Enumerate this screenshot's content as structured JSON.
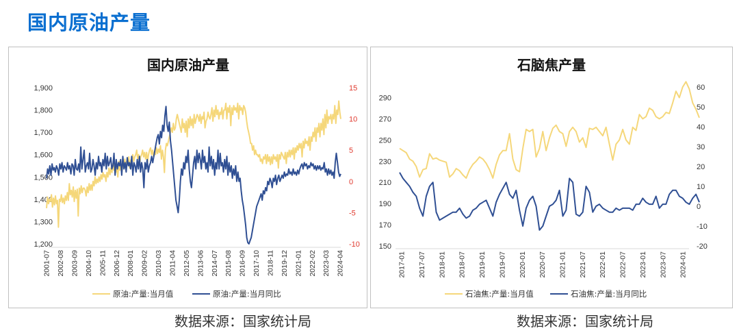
{
  "page": {
    "title": "国内原油产量"
  },
  "sources": {
    "left": "数据来源：国家统计局",
    "right": "数据来源：国家统计局"
  },
  "colors": {
    "yellow_series": "#f5d77a",
    "blue_series": "#2f4f93",
    "right_axis_text": "#e03a2f",
    "title_blue": "#0a6fd0",
    "axis_line": "#d9d9d9"
  },
  "chart_data": [
    {
      "type": "line",
      "title": "国内原油产量",
      "x_tick_labels": [
        "2001-07",
        "2002-08",
        "2003-09",
        "2004-10",
        "2005-11",
        "2006-12",
        "2008-01",
        "2009-02",
        "2010-03",
        "2011-04",
        "2012-05",
        "2013-06",
        "2014-07",
        "2015-08",
        "2016-09",
        "2017-10",
        "2018-11",
        "2019-12",
        "2021-01",
        "2022-02",
        "2023-03",
        "2024-04"
      ],
      "y_left": {
        "ylim": [
          1200,
          1900
        ],
        "ticks": [
          1200,
          1300,
          1400,
          1500,
          1600,
          1700,
          1800,
          1900
        ],
        "tick_labels": [
          "1,200",
          "1,300",
          "1,400",
          "1,500",
          "1,600",
          "1,700",
          "1,800",
          "1,900"
        ]
      },
      "y_right": {
        "ylim": [
          -10,
          15
        ],
        "ticks": [
          -10,
          -5,
          0,
          5,
          10,
          15
        ],
        "tick_labels": [
          "-10",
          "-5",
          "0",
          "5",
          "10",
          "15"
        ]
      },
      "grid": false,
      "legend_position": "bottom",
      "series": [
        {
          "name": "原油:产量:当月值",
          "axis": "left",
          "x_start": "2001-07",
          "x_end": "2024-04",
          "values": [
            1360,
            1410,
            1380,
            1400,
            1390,
            1420,
            1365,
            1405,
            1375,
            1415,
            1380,
            1395,
            1275,
            1400,
            1390,
            1420,
            1385,
            1405,
            1380,
            1415,
            1395,
            1430,
            1395,
            1470,
            1420,
            1440,
            1410,
            1455,
            1390,
            1440,
            1405,
            1445,
            1325,
            1450,
            1425,
            1460,
            1430,
            1450,
            1450,
            1440,
            1415,
            1455,
            1430,
            1470,
            1440,
            1465,
            1440,
            1480,
            1460,
            1500,
            1470,
            1490,
            1475,
            1500,
            1480,
            1510,
            1490,
            1520,
            1500,
            1510,
            1480,
            1520,
            1500,
            1540,
            1510,
            1540,
            1520,
            1560,
            1530,
            1550,
            1520,
            1555,
            1500,
            1570,
            1530,
            1550,
            1520,
            1560,
            1540,
            1580,
            1540,
            1570,
            1560,
            1590,
            1540,
            1575,
            1580,
            1600,
            1570,
            1590,
            1600,
            1620,
            1580,
            1600,
            1560,
            1590,
            1600,
            1620,
            1590,
            1610,
            1580,
            1610,
            1570,
            1600,
            1620,
            1630,
            1600,
            1620,
            1590,
            1615,
            1600,
            1630,
            1605,
            1625,
            1610,
            1640,
            1580,
            1620,
            1590,
            1520,
            1620,
            1650,
            1640,
            1660,
            1680,
            1700,
            1720,
            1700,
            1740,
            1710,
            1720,
            1760,
            1780,
            1760,
            1740,
            1720,
            1700,
            1760,
            1720,
            1740,
            1700,
            1750,
            1680,
            1760,
            1720,
            1770,
            1730,
            1760,
            1720,
            1780,
            1740,
            1760,
            1780,
            1770,
            1750,
            1780,
            1740,
            1770,
            1760,
            1790,
            1720,
            1750,
            1760,
            1790,
            1770,
            1760,
            1780,
            1810,
            1750,
            1800,
            1770,
            1820,
            1780,
            1800,
            1760,
            1790,
            1780,
            1810,
            1760,
            1800,
            1800,
            1830,
            1760,
            1810,
            1790,
            1820,
            1730,
            1810,
            1780,
            1820,
            1800,
            1810,
            1790,
            1830,
            1760,
            1820,
            1800,
            1810,
            1780,
            1820,
            1810,
            1790,
            1750,
            1720,
            1700,
            1680,
            1650,
            1650,
            1620,
            1640,
            1600,
            1620,
            1600,
            1600,
            1590,
            1600,
            1570,
            1580,
            1560,
            1590,
            1580,
            1600,
            1560,
            1600,
            1570,
            1590,
            1555,
            1590,
            1560,
            1600,
            1580,
            1590,
            1570,
            1600,
            1540,
            1600,
            1580,
            1610,
            1600,
            1590,
            1580,
            1610,
            1560,
            1610,
            1590,
            1620,
            1590,
            1620,
            1600,
            1630,
            1580,
            1630,
            1610,
            1640,
            1620,
            1650,
            1630,
            1650,
            1590,
            1660,
            1630,
            1670,
            1650,
            1660,
            1640,
            1680,
            1620,
            1680,
            1660,
            1700,
            1680,
            1720,
            1660,
            1720,
            1700,
            1740,
            1680,
            1740,
            1710,
            1760,
            1690,
            1780,
            1720,
            1800,
            1740,
            1770,
            1760,
            1780,
            1740,
            1780,
            1760,
            1820,
            1740,
            1800,
            1780,
            1840,
            1790,
            1760
          ]
        },
        {
          "name": "原油:产量:当月同比",
          "axis": "right",
          "x_start": "2001-07",
          "x_end": "2024-04",
          "values": [
            0.5,
            2.0,
            1.2,
            2.5,
            1.0,
            2.8,
            1.8,
            2.2,
            1.5,
            2.5,
            2.0,
            1.0,
            2.8,
            2.0,
            3.0,
            1.5,
            2.5,
            2.2,
            1.8,
            3.0,
            2.0,
            2.5,
            1.2,
            2.8,
            2.5,
            1.0,
            3.5,
            2.0,
            1.8,
            2.8,
            1.5,
            5.5,
            2.0,
            3.5,
            5.0,
            1.5,
            2.5,
            3.0,
            2.0,
            4.5,
            1.5,
            2.0,
            3.5,
            2.5,
            1.0,
            3.0,
            2.0,
            4.0,
            2.5,
            3.0,
            1.5,
            3.5,
            2.5,
            4.5,
            2.0,
            4.0,
            2.5,
            3.0,
            3.8,
            2.0,
            2.5,
            4.5,
            1.0,
            3.5,
            2.0,
            3.0,
            2.5,
            3.5,
            1.0,
            4.0,
            2.0,
            3.0,
            1.5,
            3.8,
            2.5,
            3.0,
            2.0,
            4.0,
            1.0,
            3.0,
            2.5,
            1.5,
            3.5,
            2.0,
            4.0,
            1.5,
            3.0,
            2.0,
            -1.0,
            3.0,
            2.0,
            3.5,
            1.5,
            2.5,
            3.0,
            4.0,
            3.0,
            4.0,
            5.0,
            6.0,
            7.0,
            7.5,
            6.0,
            8.0,
            7.0,
            9.0,
            8.0,
            10.5,
            12.0,
            9.0,
            8.0,
            9.5,
            6.5,
            5.0,
            3.0,
            1.0,
            -1.0,
            -3.0,
            -4.0,
            -5.0,
            -3.0,
            0.0,
            2.0,
            1.0,
            3.0,
            2.0,
            4.0,
            3.0,
            5.0,
            2.0,
            0.0,
            -1.0,
            1.0,
            3.0,
            4.0,
            2.0,
            5.0,
            3.0,
            4.5,
            3.5,
            2.0,
            5.0,
            3.0,
            4.0,
            2.0,
            3.0,
            1.5,
            5.5,
            2.5,
            4.0,
            2.0,
            3.5,
            1.0,
            3.0,
            2.0,
            5.0,
            2.0,
            4.5,
            2.5,
            3.0,
            1.5,
            3.5,
            2.0,
            4.0,
            1.0,
            3.0,
            1.5,
            2.5,
            0.5,
            2.0,
            1.0,
            2.5,
            0.0,
            1.5,
            0.0,
            0.5,
            -1.5,
            -3.0,
            -4.0,
            -5.5,
            -7.0,
            -9.0,
            -9.8,
            -10.0,
            -9.5,
            -9.0,
            -8.0,
            -7.0,
            -6.0,
            -5.0,
            -4.0,
            -3.5,
            -3.0,
            -2.5,
            -2.0,
            -3.0,
            -1.5,
            -2.0,
            -1.0,
            -1.5,
            0.0,
            -0.5,
            0.5,
            0.0,
            -1.0,
            0.5,
            0.0,
            1.0,
            -0.5,
            0.5,
            1.0,
            0.0,
            0.5,
            1.0,
            0.5,
            1.5,
            0.8,
            1.2,
            1.0,
            2.0,
            1.2,
            1.5,
            1.0,
            2.0,
            1.2,
            1.5,
            1.0,
            1.8,
            1.2,
            2.0,
            2.5,
            2.8,
            2.0,
            3.0,
            2.5,
            2.8,
            2.0,
            2.5,
            2.2,
            3.0,
            2.5,
            2.8,
            2.0,
            2.5,
            1.8,
            2.5,
            2.0,
            2.5,
            1.8,
            2.2,
            2.0,
            3.0,
            1.5,
            2.0,
            1.0,
            2.0,
            1.2,
            1.8,
            1.0,
            1.5,
            0.5,
            3.0,
            4.5,
            3.0,
            1.5,
            0.8,
            1.2
          ]
        }
      ]
    },
    {
      "type": "line",
      "title": "石脑焦产量",
      "x_tick_labels": [
        "2017-01",
        "2017-07",
        "2018-01",
        "2018-07",
        "2019-01",
        "2019-07",
        "2020-01",
        "2020-07",
        "2021-01",
        "2021-07",
        "2022-01",
        "2022-07",
        "2023-01",
        "2023-07",
        "2024-01"
      ],
      "y_left": {
        "ylim": [
          150,
          300
        ],
        "ticks": [
          150,
          170,
          190,
          210,
          230,
          250,
          270,
          290
        ],
        "tick_labels": [
          "150",
          "170",
          "190",
          "210",
          "230",
          "250",
          "270",
          "290"
        ]
      },
      "y_right": {
        "ylim": [
          -20,
          60
        ],
        "ticks": [
          -20,
          -10,
          0,
          10,
          20,
          30,
          40,
          50,
          60
        ],
        "tick_labels": [
          "-20",
          "-10",
          "0",
          "10",
          "20",
          "30",
          "40",
          "50",
          "60"
        ]
      },
      "grid": false,
      "legend_position": "bottom",
      "series": [
        {
          "name": "石油焦:产量:当月值",
          "axis": "left",
          "x_start": "2017-01",
          "x_end": "2024-04",
          "values": [
            242,
            240,
            238,
            232,
            230,
            225,
            215,
            222,
            223,
            237,
            232,
            233,
            231,
            230,
            229,
            215,
            218,
            223,
            221,
            217,
            214,
            222,
            227,
            230,
            234,
            232,
            228,
            222,
            214,
            227,
            236,
            240,
            240,
            256,
            232,
            222,
            220,
            242,
            260,
            258,
            260,
            234,
            242,
            258,
            240,
            252,
            261,
            264,
            258,
            256,
            244,
            258,
            262,
            258,
            248,
            252,
            243,
            261,
            260,
            262,
            258,
            254,
            262,
            246,
            231,
            246,
            250,
            260,
            250,
            246,
            262,
            259,
            274,
            270,
            272,
            280,
            278,
            272,
            270,
            272,
            276,
            275,
            285,
            296,
            290,
            300,
            305,
            298,
            285,
            279,
            271
          ]
        },
        {
          "name": "石油焦:产量:当月同比",
          "axis": "right",
          "x_start": "2017-01",
          "x_end": "2024-04",
          "values": [
            17,
            14,
            12,
            10,
            7,
            5,
            -1,
            -5,
            5,
            10,
            12,
            -3,
            -7,
            -6,
            -5,
            -4,
            -3,
            -3,
            -1,
            -4,
            -6,
            -5,
            -2,
            -1,
            1,
            2,
            3,
            -1,
            -5,
            2,
            6,
            9,
            12,
            6,
            4,
            8,
            -2,
            -10,
            -1,
            3,
            5,
            0,
            -12,
            -10,
            -5,
            0,
            1,
            3,
            8,
            -5,
            -2,
            14,
            12,
            -4,
            -5,
            -3,
            10,
            7,
            -3,
            0,
            1,
            -1,
            -2,
            -3,
            -3,
            -1,
            -2,
            -1,
            -1,
            -1,
            -2,
            1,
            1,
            4,
            2,
            1,
            1,
            5,
            -1,
            1,
            1,
            6,
            8,
            8,
            5,
            4,
            2,
            1,
            4,
            6,
            2
          ]
        }
      ]
    }
  ]
}
